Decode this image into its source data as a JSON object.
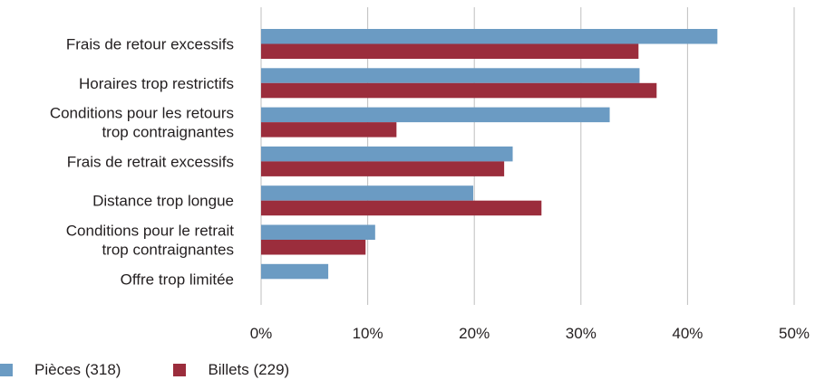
{
  "chart_data": {
    "type": "bar",
    "orientation": "horizontal",
    "categories": [
      [
        "Frais de retour excessifs"
      ],
      [
        "Horaires trop restrictifs"
      ],
      [
        "Conditions pour les retours",
        "trop contraignantes"
      ],
      [
        "Frais de retrait excessifs"
      ],
      [
        "Distance trop longue"
      ],
      [
        "Conditions pour le retrait",
        "trop contraignantes"
      ],
      [
        "Offre trop limitée"
      ]
    ],
    "series": [
      {
        "name": "Pièces (318)",
        "color": "#6b9bc3",
        "values": [
          42.8,
          35.5,
          32.7,
          23.6,
          19.9,
          10.7,
          6.3
        ]
      },
      {
        "name": "Billets (229)",
        "color": "#9b2d3c",
        "values": [
          35.4,
          37.1,
          12.7,
          22.8,
          26.3,
          9.8,
          null
        ]
      }
    ],
    "xlim": [
      0,
      50
    ],
    "xticks": [
      0,
      10,
      20,
      30,
      40,
      50
    ],
    "xtick_labels": [
      "0%",
      "10%",
      "20%",
      "30%",
      "40%",
      "50%"
    ],
    "grid": true,
    "legend_position": "bottom-left",
    "grid_color": "#bfbfbf"
  }
}
